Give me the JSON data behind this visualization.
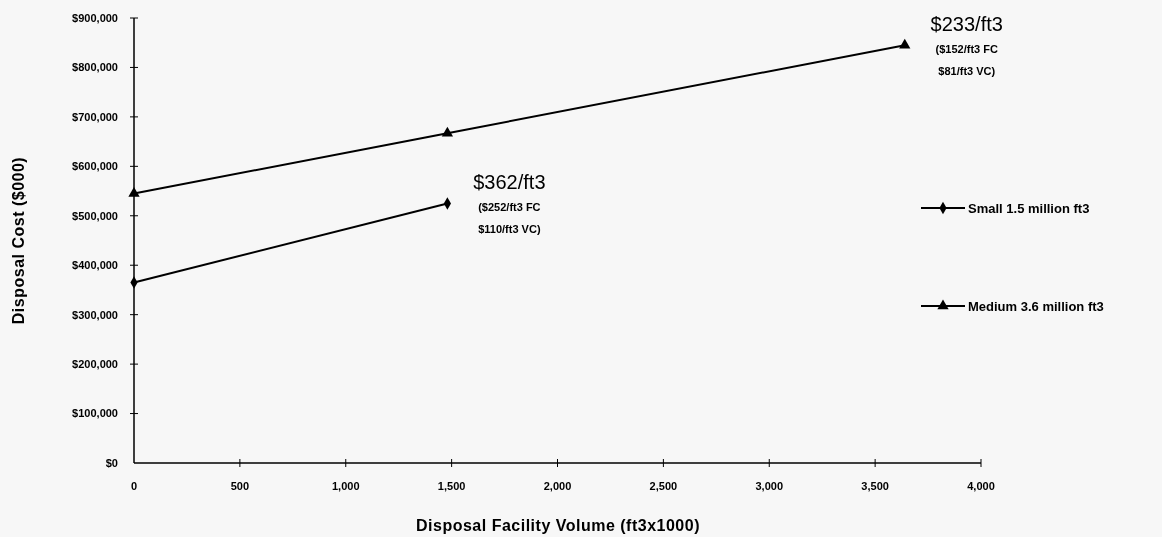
{
  "chart_data": {
    "type": "line",
    "xlabel": "Disposal Facility Volume (ft3x1000)",
    "ylabel": "Disposal Cost ($000)",
    "xlim": [
      0,
      4000
    ],
    "xticks": [
      {
        "value": 0,
        "label": "0"
      },
      {
        "value": 500,
        "label": "500"
      },
      {
        "value": 1000,
        "label": "1,000"
      },
      {
        "value": 1500,
        "label": "1,500"
      },
      {
        "value": 2000,
        "label": "2,000"
      },
      {
        "value": 2500,
        "label": "2,500"
      },
      {
        "value": 3000,
        "label": "3,000"
      },
      {
        "value": 3500,
        "label": "3,500"
      },
      {
        "value": 4000,
        "label": "4,000"
      }
    ],
    "ylim": [
      0,
      900000
    ],
    "yticks": [
      {
        "value": 0,
        "label": "$0"
      },
      {
        "value": 100000,
        "label": "$100,000"
      },
      {
        "value": 200000,
        "label": "$200,000"
      },
      {
        "value": 300000,
        "label": "$300,000"
      },
      {
        "value": 400000,
        "label": "$400,000"
      },
      {
        "value": 500000,
        "label": "$500,000"
      },
      {
        "value": 600000,
        "label": "$600,000"
      },
      {
        "value": 700000,
        "label": "$700,000"
      },
      {
        "value": 800000,
        "label": "$800,000"
      },
      {
        "value": 900000,
        "label": "$900,000"
      }
    ],
    "series": [
      {
        "name": "Small 1.5 million ft3",
        "color": "#000000",
        "marker": "diamond",
        "x": [
          0,
          1480
        ],
        "values": [
          365000,
          525000
        ]
      },
      {
        "name": "Medium 3.6 million ft3",
        "color": "#000000",
        "marker": "triangle",
        "x": [
          0,
          1480,
          3640
        ],
        "values": [
          545000,
          667000,
          845000
        ]
      }
    ],
    "annotations": [
      {
        "text": "$362/ft3\n($252/ft3 FC\n$110/ft3 VC)",
        "x": 1480,
        "y": 525000
      },
      {
        "text": "$233/ft3\n($152/ft3 FC\n$81/ft3 VC)",
        "x": 3640,
        "y": 845000
      }
    ],
    "legend": "right",
    "grid": false,
    "line_style": "solid"
  }
}
